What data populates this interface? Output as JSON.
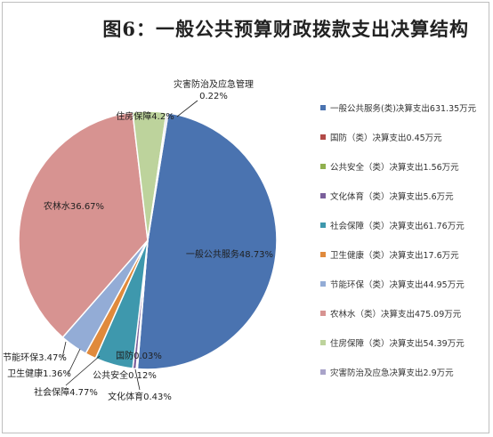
{
  "chart_data": {
    "type": "pie",
    "title": "图6：一般公共预算财政拨款支出决算结构",
    "slices": [
      {
        "category": "一般公共服务",
        "percent": 48.73,
        "label": "一般公共服务48.73%",
        "legend": "一般公共服务(类)决算支出631.35万元",
        "value": 631.35,
        "color": "#4a73b0"
      },
      {
        "category": "国防",
        "percent": 0.03,
        "label": "国防0.03%",
        "legend": "国防（类）决算支出0.45万元",
        "value": 0.45,
        "color": "#b24a47"
      },
      {
        "category": "公共安全",
        "percent": 0.12,
        "label": "公共安全0.12%",
        "legend": "公共安全（类）决算支出1.56万元",
        "value": 1.56,
        "color": "#90b04e"
      },
      {
        "category": "文化体育",
        "percent": 0.43,
        "label": "文化体育0.43%",
        "legend": "文化体育（类）决算支出5.6万元",
        "value": 5.6,
        "color": "#7a5f9b"
      },
      {
        "category": "社会保障",
        "percent": 4.77,
        "label": "社会保障4.77%",
        "legend": "社会保障（类）决算支出61.76万元",
        "value": 61.76,
        "color": "#3e98ad"
      },
      {
        "category": "卫生健康",
        "percent": 1.36,
        "label": "卫生健康1.36%",
        "legend": "卫生健康（类）决算支出17.6万元",
        "value": 17.6,
        "color": "#e08a3c"
      },
      {
        "category": "节能环保",
        "percent": 3.47,
        "label": "节能环保3.47%",
        "legend": "节能环保（类）决算支出44.95万元",
        "value": 44.95,
        "color": "#93acd6"
      },
      {
        "category": "农林水",
        "percent": 36.67,
        "label": "农林水36.67%",
        "legend": "农林水（类）决算支出475.09万元",
        "value": 475.09,
        "color": "#d79391"
      },
      {
        "category": "住房保障",
        "percent": 4.2,
        "label": "住房保障4.2%",
        "legend": "住房保障（类）决算支出54.39万元",
        "value": 54.39,
        "color": "#bdd39c"
      },
      {
        "category": "灾害防治及应急管理",
        "percent": 0.22,
        "label_lines": [
          "灾害防治及应急管理",
          "0.22%"
        ],
        "legend": "灾害防治及应急决算支出2.9万元",
        "value": 2.9,
        "color": "#a9a3c9"
      }
    ],
    "legend_position": "right"
  }
}
